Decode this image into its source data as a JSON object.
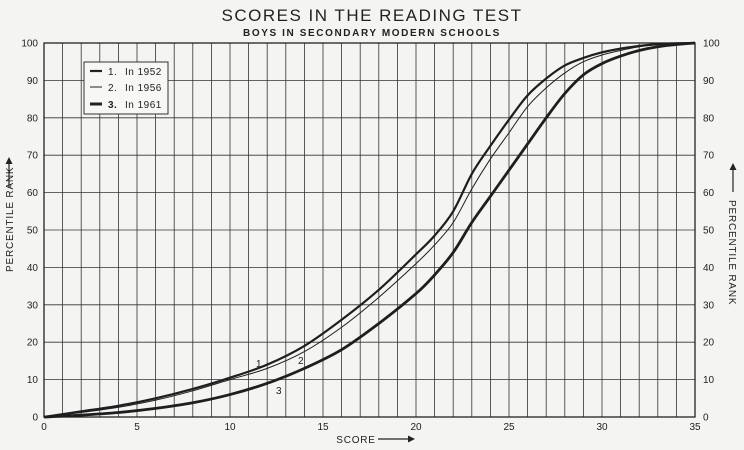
{
  "chart_data": {
    "type": "line",
    "title": "SCORES IN THE READING TEST",
    "subtitle": "BOYS IN SECONDARY MODERN SCHOOLS",
    "xlabel": "SCORE",
    "ylabel_left": "PERCENTILE RANK",
    "ylabel_right": "PERCENTILE RANK",
    "xlim": [
      0,
      35
    ],
    "ylim": [
      0,
      100
    ],
    "x_ticks": [
      "0",
      "5",
      "10",
      "15",
      "20",
      "25",
      "30",
      "35"
    ],
    "y_ticks": [
      "0",
      "10",
      "20",
      "30",
      "40",
      "50",
      "60",
      "70",
      "80",
      "90",
      "100"
    ],
    "grid": true,
    "legend_position": "top-left",
    "legend": [
      {
        "number": "1.",
        "label": "In 1952"
      },
      {
        "number": "2.",
        "label": "In 1956"
      },
      {
        "number": "3.",
        "label": "In 1961"
      }
    ],
    "series": [
      {
        "label_on_curve": "1",
        "x": [
          0,
          2,
          4,
          6,
          8,
          10,
          12,
          14,
          16,
          18,
          20,
          21,
          22,
          23,
          24,
          25,
          26,
          27,
          28,
          29,
          30,
          31,
          32,
          33,
          34,
          35
        ],
        "values": [
          0,
          1.5,
          3,
          5,
          7.5,
          10.5,
          14,
          19,
          26,
          34,
          43.5,
          48.5,
          55,
          65,
          72.5,
          79.5,
          86,
          90.5,
          94,
          96,
          97.5,
          98.5,
          99.2,
          99.7,
          99.9,
          100
        ]
      },
      {
        "label_on_curve": "2",
        "x": [
          0,
          2,
          4,
          6,
          8,
          10,
          12,
          14,
          16,
          18,
          20,
          21,
          22,
          23,
          24,
          25,
          26,
          27,
          28,
          29,
          30,
          31,
          32,
          33,
          34,
          35
        ],
        "values": [
          0,
          1.2,
          2.6,
          4.5,
          7,
          10,
          13,
          17.5,
          24,
          32,
          41,
          46,
          52,
          61,
          69,
          76,
          83,
          88,
          92,
          95,
          96.8,
          98,
          99,
          99.6,
          99.9,
          100
        ]
      },
      {
        "label_on_curve": "3",
        "x": [
          0,
          2,
          4,
          6,
          8,
          10,
          12,
          14,
          16,
          18,
          20,
          21,
          22,
          23,
          24,
          25,
          26,
          27,
          28,
          29,
          30,
          31,
          32,
          33,
          34,
          35
        ],
        "values": [
          0,
          0.5,
          1.2,
          2.3,
          3.8,
          6,
          9,
          13,
          18,
          25,
          33,
          38,
          44,
          52,
          59,
          66,
          73,
          80,
          86.5,
          91.5,
          94.5,
          96.5,
          98,
          99,
          99.6,
          100
        ]
      }
    ]
  }
}
